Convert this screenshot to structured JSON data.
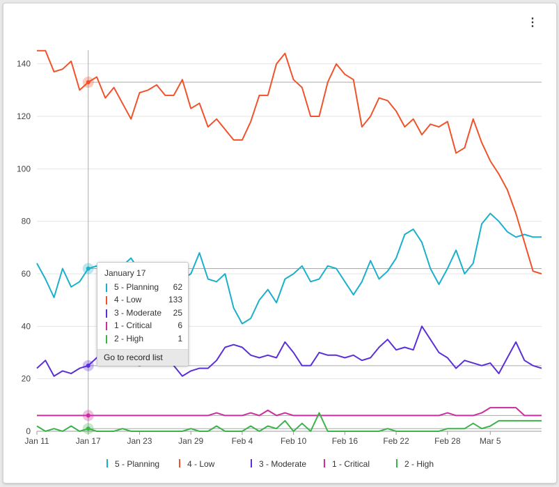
{
  "menu": {
    "icon": "kebab-menu-icon",
    "glyph": "⋮"
  },
  "chart_data": {
    "type": "line",
    "x": [
      "Jan 11",
      "Jan 12",
      "Jan 13",
      "Jan 14",
      "Jan 15",
      "Jan 16",
      "Jan 17",
      "Jan 18",
      "Jan 19",
      "Jan 20",
      "Jan 21",
      "Jan 22",
      "Jan 23",
      "Jan 24",
      "Jan 25",
      "Jan 26",
      "Jan 27",
      "Jan 28",
      "Jan 29",
      "Jan 30",
      "Jan 31",
      "Feb 1",
      "Feb 2",
      "Feb 3",
      "Feb 4",
      "Feb 5",
      "Feb 6",
      "Feb 7",
      "Feb 8",
      "Feb 9",
      "Feb 10",
      "Feb 11",
      "Feb 12",
      "Feb 13",
      "Feb 14",
      "Feb 15",
      "Feb 16",
      "Feb 17",
      "Feb 18",
      "Feb 19",
      "Feb 20",
      "Feb 21",
      "Feb 22",
      "Feb 23",
      "Feb 24",
      "Feb 25",
      "Feb 26",
      "Feb 27",
      "Feb 28",
      "Mar 1",
      "Mar 2",
      "Mar 3",
      "Mar 4",
      "Mar 5",
      "Mar 6",
      "Mar 7",
      "Mar 8",
      "Mar 9",
      "Mar 10",
      "Mar 11"
    ],
    "x_ticks": [
      "Jan 11",
      "Jan 17",
      "Jan 23",
      "Jan 29",
      "Feb 4",
      "Feb 10",
      "Feb 16",
      "Feb 22",
      "Feb 28",
      "Mar 5"
    ],
    "ylim": [
      0,
      150
    ],
    "y_ticks": [
      0,
      20,
      40,
      60,
      80,
      100,
      120,
      140
    ],
    "grid": true,
    "legend_position": "bottom",
    "series": [
      {
        "name": "5 - Planning",
        "color": "#1ab0cc",
        "values": [
          64,
          58,
          51,
          62,
          55,
          57,
          62,
          63,
          61,
          62,
          63,
          66,
          61,
          58,
          56,
          44,
          46,
          58,
          60,
          68,
          58,
          57,
          60,
          47,
          41,
          43,
          50,
          54,
          49,
          58,
          60,
          63,
          57,
          58,
          63,
          62,
          57,
          52,
          57,
          65,
          58,
          61,
          66,
          75,
          77,
          72,
          62,
          56,
          62,
          69,
          60,
          64,
          79,
          83,
          80,
          76,
          74,
          75,
          74,
          74
        ]
      },
      {
        "name": "4 - Low",
        "color": "#f0522a",
        "values": [
          145,
          145,
          137,
          138,
          141,
          130,
          133,
          135,
          127,
          131,
          125,
          119,
          129,
          130,
          132,
          128,
          128,
          134,
          123,
          125,
          116,
          119,
          115,
          111,
          111,
          118,
          128,
          128,
          140,
          144,
          134,
          131,
          120,
          120,
          133,
          140,
          136,
          134,
          116,
          120,
          127,
          126,
          122,
          116,
          119,
          113,
          117,
          116,
          118,
          106,
          108,
          119,
          110,
          103,
          98,
          92,
          83,
          72,
          61,
          60
        ]
      },
      {
        "name": "3 - Moderate",
        "color": "#5a2fd6",
        "values": [
          24,
          27,
          21,
          23,
          22,
          24,
          25,
          28,
          33,
          31,
          30,
          26,
          25,
          26,
          26,
          27,
          25,
          21,
          23,
          24,
          24,
          27,
          32,
          33,
          32,
          29,
          28,
          29,
          28,
          34,
          30,
          25,
          25,
          30,
          29,
          29,
          28,
          29,
          27,
          28,
          32,
          35,
          31,
          32,
          31,
          40,
          35,
          30,
          28,
          24,
          27,
          26,
          25,
          26,
          22,
          28,
          34,
          27,
          25,
          24
        ]
      },
      {
        "name": "1 - Critical",
        "color": "#cc2d9e",
        "values": [
          6,
          6,
          6,
          6,
          6,
          6,
          6,
          6,
          6,
          6,
          6,
          6,
          6,
          6,
          6,
          6,
          6,
          6,
          6,
          6,
          6,
          7,
          6,
          6,
          6,
          7,
          6,
          8,
          6,
          7,
          6,
          6,
          6,
          6,
          6,
          6,
          6,
          6,
          6,
          6,
          6,
          6,
          6,
          6,
          6,
          6,
          6,
          6,
          7,
          6,
          6,
          6,
          7,
          9,
          9,
          9,
          9,
          6,
          6,
          6
        ]
      },
      {
        "name": "2 - High",
        "color": "#3ab34a",
        "values": [
          2,
          0,
          1,
          0,
          2,
          0,
          1,
          0,
          0,
          0,
          1,
          0,
          0,
          0,
          0,
          0,
          0,
          0,
          1,
          0,
          0,
          2,
          0,
          0,
          0,
          2,
          0,
          2,
          1,
          4,
          0,
          3,
          0,
          7,
          0,
          0,
          0,
          0,
          0,
          0,
          0,
          1,
          0,
          0,
          0,
          0,
          0,
          0,
          1,
          1,
          1,
          3,
          1,
          2,
          4,
          4,
          4,
          4,
          4,
          4
        ]
      }
    ],
    "highlight_index": 6
  },
  "tooltip": {
    "date": "January 17",
    "rows": [
      {
        "label": "5 - Planning",
        "value": "62",
        "color": "#1ab0cc"
      },
      {
        "label": "4 - Low",
        "value": "133",
        "color": "#f0522a"
      },
      {
        "label": "3 - Moderate",
        "value": "25",
        "color": "#5a2fd6"
      },
      {
        "label": "1 - Critical",
        "value": "6",
        "color": "#cc2d9e"
      },
      {
        "label": "2 - High",
        "value": "1",
        "color": "#3ab34a"
      }
    ],
    "link_label": "Go to record list"
  },
  "legend": [
    {
      "label": "5 - Planning",
      "color": "#1ab0cc"
    },
    {
      "label": "4 - Low",
      "color": "#f0522a"
    },
    {
      "label": "3 - Moderate",
      "color": "#5a2fd6"
    },
    {
      "label": "1 - Critical",
      "color": "#cc2d9e"
    },
    {
      "label": "2 - High",
      "color": "#3ab34a"
    }
  ]
}
